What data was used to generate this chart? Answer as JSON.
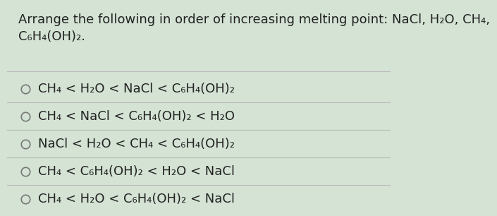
{
  "title": "Arrange the following in order of increasing melting point: NaCl, H₂O, CH₄,\nC₆H₄(OH)₂.",
  "options": [
    "CH₄ < H₂O < NaCl < C₆H₄(OH)₂",
    "CH₄ < NaCl < C₆H₄(OH)₂ < H₂O",
    "NaCl < H₂O < CH₄ < C₆H₄(OH)₂",
    "CH₄ < C₆H₄(OH)₂ < H₂O < NaCl",
    "CH₄ < H₂O < C₆H₄(OH)₂ < NaCl"
  ],
  "background_color": "#d4e3d4",
  "text_color": "#222222",
  "circle_color": "#777777",
  "title_fontsize": 13.0,
  "option_fontsize": 13.0,
  "divider_color": "#bbbbbb",
  "fig_width": 7.0,
  "fig_height": 3.72
}
